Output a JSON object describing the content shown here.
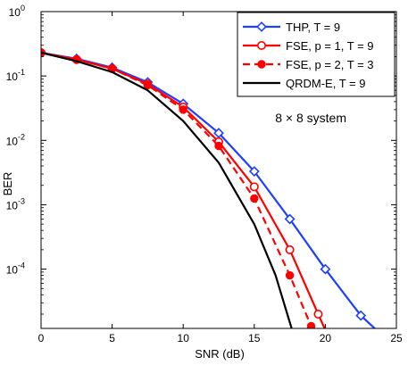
{
  "chart_data": {
    "type": "line",
    "xlabel": "SNR (dB)",
    "ylabel": "BER",
    "xlim": [
      0,
      25
    ],
    "ylim": [
      1.2e-05,
      1
    ],
    "yscale": "log",
    "xticks": [
      0,
      5,
      10,
      15,
      20,
      25
    ],
    "xtick_labels": [
      "0",
      "5",
      "10",
      "15",
      "20",
      "25"
    ],
    "yticks": [
      {
        "value": 1,
        "base": "10",
        "exp": "0"
      },
      {
        "value": 0.1,
        "base": "10",
        "exp": "-1"
      },
      {
        "value": 0.01,
        "base": "10",
        "exp": "-2"
      },
      {
        "value": 0.001,
        "base": "10",
        "exp": "-3"
      },
      {
        "value": 0.0001,
        "base": "10",
        "exp": "-4"
      }
    ],
    "grid": false,
    "legend_position": "top-right",
    "annotation": "8 × 8 system",
    "series": [
      {
        "name": "THP, T = 9",
        "color": "#1f3fff",
        "line": "solid",
        "marker": "diamond-open",
        "x": [
          0,
          2.5,
          5,
          7.5,
          10,
          12.5,
          15,
          17.5,
          20,
          22.5,
          24.2
        ],
        "y": [
          0.23,
          0.185,
          0.135,
          0.08,
          0.037,
          0.013,
          0.0033,
          0.0006,
          0.0001,
          1.9e-05,
          8.5e-06
        ]
      },
      {
        "name": "FSE, p = 1, T = 9",
        "color": "#ff0000",
        "line": "solid",
        "marker": "circle-open",
        "x": [
          0,
          2.5,
          5,
          7.5,
          10,
          12.5,
          15,
          17.5,
          19.5,
          20.2
        ],
        "y": [
          0.23,
          0.18,
          0.13,
          0.075,
          0.033,
          0.0095,
          0.0019,
          0.0002,
          2e-05,
          9e-06
        ]
      },
      {
        "name": "FSE, p = 2, T = 3",
        "color": "#ff0000",
        "line": "dashed",
        "marker": "circle-filled",
        "x": [
          0,
          2.5,
          5,
          7.5,
          10,
          12.5,
          15,
          17.5,
          19,
          19.5
        ],
        "y": [
          0.23,
          0.18,
          0.13,
          0.072,
          0.03,
          0.0082,
          0.00125,
          8e-05,
          1.3e-05,
          9e-06
        ]
      },
      {
        "name": "QRDM-E, T = 9",
        "color": "#000000",
        "line": "solid",
        "marker": "none",
        "x": [
          0,
          2.5,
          5,
          7.5,
          10,
          12.5,
          15,
          16.5,
          17.8
        ],
        "y": [
          0.23,
          0.17,
          0.115,
          0.06,
          0.02,
          0.0045,
          0.0005,
          8e-05,
          9e-06
        ]
      }
    ]
  }
}
